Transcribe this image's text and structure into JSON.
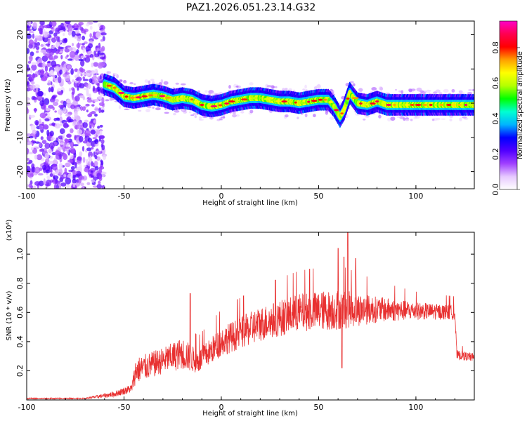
{
  "title": "PAZ1.2026.051.23.14.G32",
  "chart_data": [
    {
      "type": "heatmap",
      "name": "spectrogram",
      "xlabel": "Height of straight line (km)",
      "ylabel": "Frequency (Hz)",
      "xlim": [
        -100,
        130
      ],
      "ylim": [
        -25,
        24
      ],
      "xticks": [
        -100,
        -50,
        0,
        50,
        100
      ],
      "yticks": [
        -20,
        -10,
        0,
        10,
        20
      ],
      "colorbar": {
        "label": "Normalized spectral amplitude",
        "range": [
          0,
          0.95
        ],
        "ticks": [
          "0.0",
          "0.2",
          "0.4",
          "0.6",
          "0.8"
        ],
        "colormap": [
          "#ffffff",
          "#e6c8ff",
          "#a040ff",
          "#5000ff",
          "#0000ff",
          "#00b4ff",
          "#00ffd2",
          "#00ff00",
          "#b4ff00",
          "#ffff00",
          "#ffa000",
          "#ff0000",
          "#ff0050",
          "#ff00c8"
        ]
      },
      "ridge": [
        {
          "x": -60,
          "f": 5.5
        },
        {
          "x": -55,
          "f": 4.5
        },
        {
          "x": -50,
          "f": 2.0
        },
        {
          "x": -45,
          "f": 1.5
        },
        {
          "x": -40,
          "f": 2.0
        },
        {
          "x": -35,
          "f": 2.5
        },
        {
          "x": -30,
          "f": 2.0
        },
        {
          "x": -25,
          "f": 1.0
        },
        {
          "x": -20,
          "f": 1.5
        },
        {
          "x": -15,
          "f": 1.0
        },
        {
          "x": -10,
          "f": -0.5
        },
        {
          "x": -5,
          "f": -1.0
        },
        {
          "x": 0,
          "f": -0.5
        },
        {
          "x": 5,
          "f": 0.5
        },
        {
          "x": 10,
          "f": 1.0
        },
        {
          "x": 15,
          "f": 1.5
        },
        {
          "x": 20,
          "f": 1.5
        },
        {
          "x": 25,
          "f": 1.0
        },
        {
          "x": 30,
          "f": 0.5
        },
        {
          "x": 35,
          "f": 0.5
        },
        {
          "x": 40,
          "f": 0.0
        },
        {
          "x": 45,
          "f": 0.5
        },
        {
          "x": 50,
          "f": 1.0
        },
        {
          "x": 55,
          "f": 1.0
        },
        {
          "x": 58,
          "f": -1.0
        },
        {
          "x": 61,
          "f": -4.0
        },
        {
          "x": 63,
          "f": -2.0
        },
        {
          "x": 66,
          "f": 3.0
        },
        {
          "x": 70,
          "f": 0.0
        },
        {
          "x": 75,
          "f": -0.5
        },
        {
          "x": 80,
          "f": 0.5
        },
        {
          "x": 85,
          "f": -0.5
        },
        {
          "x": 90,
          "f": -0.5
        },
        {
          "x": 95,
          "f": -0.5
        },
        {
          "x": 100,
          "f": -0.5
        },
        {
          "x": 105,
          "f": -0.5
        },
        {
          "x": 110,
          "f": -0.5
        },
        {
          "x": 115,
          "f": -0.5
        },
        {
          "x": 120,
          "f": -0.5
        },
        {
          "x": 125,
          "f": -0.5
        },
        {
          "x": 130,
          "f": -0.5
        }
      ]
    },
    {
      "type": "line",
      "name": "snr",
      "xlabel": "Height of straight line (km)",
      "ylabel": "SNR (10 * v/v)",
      "yexponent_label": "(x10⁴)",
      "xlim": [
        -100,
        130
      ],
      "ylim": [
        0,
        1.15
      ],
      "xticks": [
        -100,
        -50,
        0,
        50,
        100
      ],
      "yticks": [
        0.2,
        0.4,
        0.6,
        0.8,
        1.0
      ],
      "color": "#e83030",
      "envelope": [
        {
          "x": -100,
          "base": 0.01,
          "noise": 0.004
        },
        {
          "x": -70,
          "base": 0.01,
          "noise": 0.004
        },
        {
          "x": -55,
          "base": 0.04,
          "noise": 0.02
        },
        {
          "x": -46,
          "base": 0.08,
          "noise": 0.03
        },
        {
          "x": -44,
          "base": 0.2,
          "noise": 0.09
        },
        {
          "x": -30,
          "base": 0.27,
          "noise": 0.09
        },
        {
          "x": -20,
          "base": 0.32,
          "noise": 0.11
        },
        {
          "x": -12,
          "base": 0.26,
          "noise": 0.08
        },
        {
          "x": 0,
          "base": 0.4,
          "noise": 0.1
        },
        {
          "x": 20,
          "base": 0.52,
          "noise": 0.12
        },
        {
          "x": 40,
          "base": 0.6,
          "noise": 0.13
        },
        {
          "x": 60,
          "base": 0.62,
          "noise": 0.14
        },
        {
          "x": 80,
          "base": 0.62,
          "noise": 0.09
        },
        {
          "x": 100,
          "base": 0.61,
          "noise": 0.06
        },
        {
          "x": 120,
          "base": 0.6,
          "noise": 0.05
        },
        {
          "x": 121,
          "base": 0.31,
          "noise": 0.03
        },
        {
          "x": 130,
          "base": 0.29,
          "noise": 0.03
        }
      ],
      "peaks": [
        {
          "x": -16,
          "y": 0.73
        },
        {
          "x": 60,
          "y": 1.04
        },
        {
          "x": 63,
          "y": 0.98
        },
        {
          "x": 65,
          "y": 1.15
        },
        {
          "x": 69,
          "y": 0.97
        },
        {
          "x": 62,
          "y": 0.22
        }
      ]
    }
  ]
}
